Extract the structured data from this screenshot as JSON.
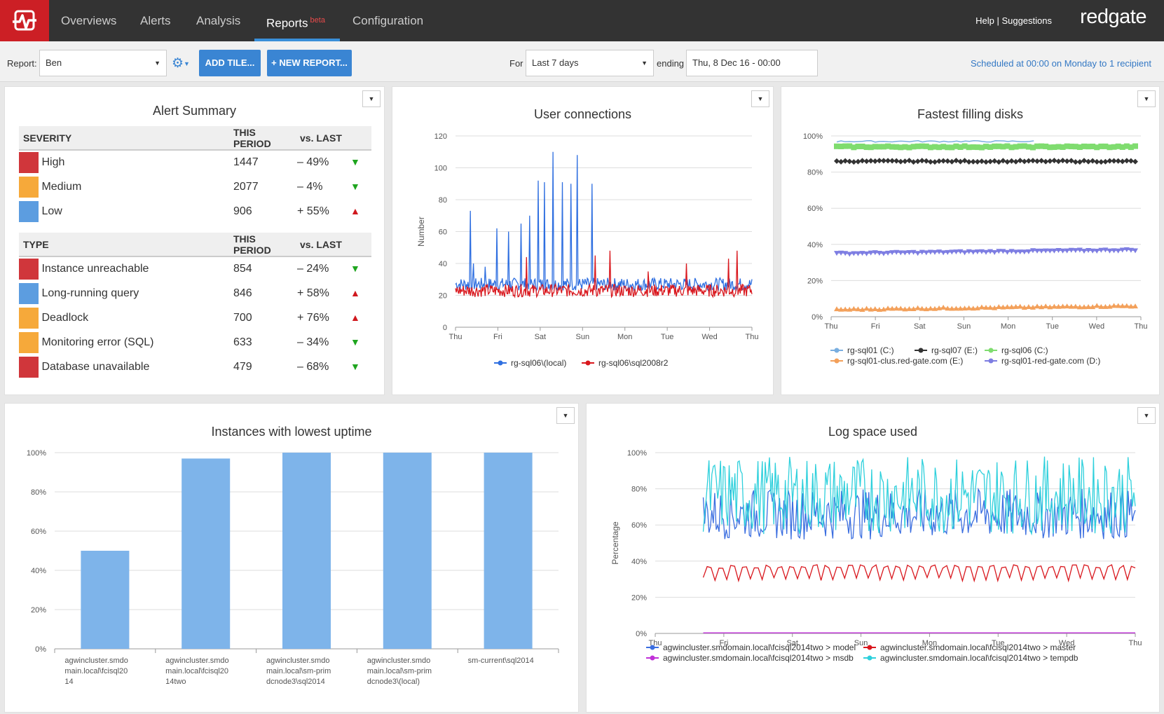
{
  "nav": {
    "items": [
      "Overviews",
      "Alerts",
      "Analysis",
      "Reports",
      "Configuration"
    ],
    "beta": "beta",
    "help": "Help | Suggestions",
    "brand": "redgate"
  },
  "toolbar": {
    "report_label": "Report:",
    "report_value": "Ben",
    "add_tile": "ADD TILE...",
    "new_report": "+ NEW REPORT...",
    "for_label": "For",
    "period": "Last 7 days",
    "ending_label": "ending",
    "ending_value": "Thu, 8 Dec 16 - 00:00",
    "scheduled": "Scheduled at 00:00 on Monday to 1 recipient"
  },
  "alert_summary": {
    "title": "Alert Summary",
    "severity_header": [
      "SEVERITY",
      "THIS PERIOD",
      "vs. LAST"
    ],
    "severity": [
      {
        "name": "High",
        "value": "1447",
        "change": "– 49%",
        "dir": "down",
        "color": "#d0363b"
      },
      {
        "name": "Medium",
        "value": "2077",
        "change": "– 4%",
        "dir": "down",
        "color": "#f6a93a"
      },
      {
        "name": "Low",
        "value": "906",
        "change": "+ 55%",
        "dir": "up",
        "color": "#5c9de0"
      }
    ],
    "type_header": [
      "TYPE",
      "THIS PERIOD",
      "vs. LAST"
    ],
    "types": [
      {
        "name": "Instance unreachable",
        "value": "854",
        "change": "– 24%",
        "dir": "down",
        "color": "#d0363b"
      },
      {
        "name": "Long-running query",
        "value": "846",
        "change": "+ 58%",
        "dir": "up",
        "color": "#5c9de0"
      },
      {
        "name": "Deadlock",
        "value": "700",
        "change": "+ 76%",
        "dir": "up",
        "color": "#f6a93a"
      },
      {
        "name": "Monitoring error (SQL)",
        "value": "633",
        "change": "– 34%",
        "dir": "down",
        "color": "#f6a93a"
      },
      {
        "name": "Database unavailable",
        "value": "479",
        "change": "– 68%",
        "dir": "down",
        "color": "#d0363b"
      }
    ]
  },
  "chart_data": [
    {
      "type": "line",
      "title": "User connections",
      "ylabel": "Number",
      "ylim": [
        0,
        120
      ],
      "yticks": [
        "0",
        "20",
        "40",
        "60",
        "80",
        "100",
        "120"
      ],
      "xticks": [
        "Thu",
        "Fri",
        "Sat",
        "Sun",
        "Mon",
        "Tue",
        "Wed",
        "Thu"
      ],
      "series": [
        {
          "name": "rg-sql06\\(local)",
          "color": "#2f6fe0",
          "baseline": 27,
          "spikes": [
            [
              0.05,
              73
            ],
            [
              0.06,
              40
            ],
            [
              0.1,
              38
            ],
            [
              0.14,
              62
            ],
            [
              0.18,
              60
            ],
            [
              0.22,
              65
            ],
            [
              0.25,
              70
            ],
            [
              0.28,
              92
            ],
            [
              0.3,
              91
            ],
            [
              0.33,
              110
            ],
            [
              0.36,
              91
            ],
            [
              0.39,
              90
            ],
            [
              0.41,
              108
            ],
            [
              0.46,
              90
            ]
          ]
        },
        {
          "name": "rg-sql06\\sql2008r2",
          "color": "#d9181e",
          "baseline": 23,
          "spikes": [
            [
              0.24,
              44
            ],
            [
              0.47,
              45
            ],
            [
              0.52,
              48
            ],
            [
              0.65,
              35
            ],
            [
              0.78,
              40
            ],
            [
              0.92,
              43
            ],
            [
              0.95,
              48
            ]
          ]
        }
      ]
    },
    {
      "type": "line",
      "title": "Fastest filling disks",
      "ylim": [
        0,
        100
      ],
      "yticks": [
        "0%",
        "20%",
        "40%",
        "60%",
        "80%",
        "100%"
      ],
      "xticks": [
        "Thu",
        "Fri",
        "Sat",
        "Sun",
        "Mon",
        "Tue",
        "Wed",
        "Thu"
      ],
      "series": [
        {
          "name": "rg-sql01 (C:)",
          "color": "#79aee0",
          "values": [
            97,
            97
          ],
          "end": 0.66
        },
        {
          "name": "rg-sql07 (E:)",
          "color": "#333333",
          "values": [
            86,
            86
          ]
        },
        {
          "name": "rg-sql06 (C:)",
          "color": "#7fdc6f",
          "values": [
            94,
            94
          ]
        },
        {
          "name": "rg-sql01-clus.red-gate.com (E:)",
          "color": "#f3a05a",
          "values": [
            4,
            6
          ]
        },
        {
          "name": "rg-sql01-red-gate.com (D:)",
          "color": "#7d7de2",
          "values": [
            35,
            37
          ]
        }
      ]
    },
    {
      "type": "bar",
      "title": "Instances with lowest uptime",
      "ylim": [
        0,
        100
      ],
      "yticks": [
        "0%",
        "20%",
        "40%",
        "60%",
        "80%",
        "100%"
      ],
      "categories": [
        [
          "agwincluster.smdo",
          "main.local\\fcisql20",
          "14"
        ],
        [
          "agwincluster.smdo",
          "main.local\\fcisql20",
          "14two"
        ],
        [
          "agwincluster.smdo",
          "main.local\\sm-prim",
          "dcnode3\\sql2014"
        ],
        [
          "agwincluster.smdo",
          "main.local\\sm-prim",
          "dcnode3\\(local)"
        ],
        [
          "sm-current\\sql2014"
        ]
      ],
      "values": [
        50,
        97,
        100,
        100,
        100
      ],
      "color": "#7eb4ea"
    },
    {
      "type": "line",
      "title": "Log space used",
      "ylabel": "Percentage",
      "ylim": [
        0,
        100
      ],
      "yticks": [
        "0%",
        "20%",
        "40%",
        "60%",
        "80%",
        "100%"
      ],
      "xticks": [
        "Thu",
        "Fri",
        "Sat",
        "Sun",
        "Mon",
        "Tue",
        "Wed",
        "Thu"
      ],
      "series": [
        {
          "name": "agwincluster.smdomain.local\\fcisql2014two > model",
          "color": "#3b6ee0",
          "range": [
            52,
            80
          ]
        },
        {
          "name": "agwincluster.smdomain.local\\fcisql2014two > master",
          "color": "#d9181e",
          "range": [
            29,
            38
          ]
        },
        {
          "name": "agwincluster.smdomain.local\\fcisql2014two > msdb",
          "color": "#c030d8",
          "range": [
            0,
            0.5
          ]
        },
        {
          "name": "agwincluster.smdomain.local\\fcisql2014two > tempdb",
          "color": "#2ed0dc",
          "range": [
            55,
            98
          ]
        }
      ]
    }
  ]
}
